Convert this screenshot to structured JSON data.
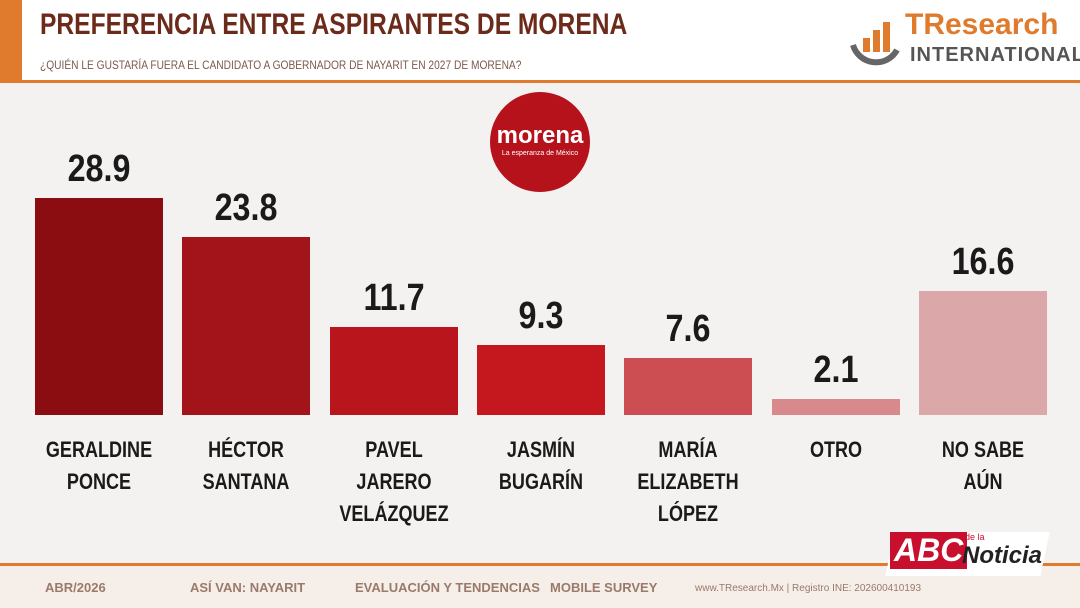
{
  "chart_data": {
    "type": "bar",
    "title": "PREFERENCIA ENTRE ASPIRANTES DE MORENA",
    "subtitle": "¿QUIÉN LE GUSTARÍA FUERA EL CANDIDATO A GOBERNADOR DE NAYARIT EN 2027 DE MORENA?",
    "categories": [
      "GERALDINE\nPONCE",
      "HÉCTOR\nSANTANA",
      "PAVEL JARERO\nVELÁZQUEZ",
      "JASMÍN\nBUGARÍN",
      "MARÍA\nELIZABETH\nLÓPEZ",
      "OTRO",
      "NO SABE AÚN"
    ],
    "values": [
      28.9,
      23.8,
      11.7,
      9.3,
      7.6,
      2.1,
      16.6
    ],
    "colors": [
      "#8b0d12",
      "#a3131a",
      "#b8161c",
      "#c5171e",
      "#cc4d52",
      "#d8898b",
      "#dca7a9"
    ]
  },
  "branding": {
    "name": "TResearch",
    "tagline": "INTERNATIONAL",
    "party": "morena",
    "party_slogan": "La esperanza de México"
  },
  "footer": {
    "items": [
      "ABR/2026",
      "ASÍ VAN: NAYARIT",
      "EVALUACIÓN Y TENDENCIAS",
      "MOBILE SURVEY"
    ],
    "registry": "www.TResearch.Mx | Registro INE: 202600410193"
  },
  "watermark": {
    "brand": "ABC",
    "connector": "de la",
    "word": "Noticia"
  }
}
